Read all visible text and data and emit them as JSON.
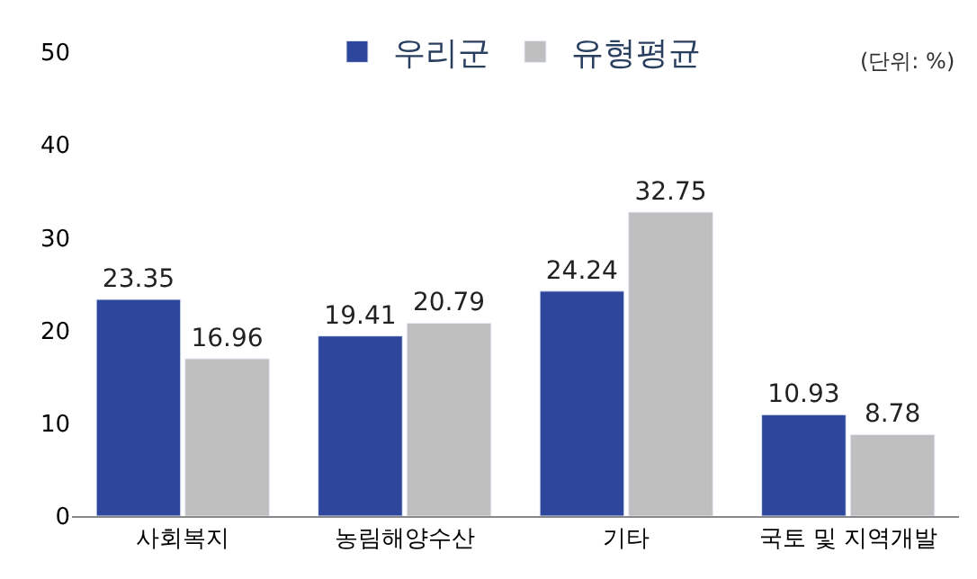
{
  "chart_data": {
    "type": "bar",
    "categories": [
      "사회복지",
      "농림해양수산",
      "기타",
      "국토 및 지역개발"
    ],
    "series": [
      {
        "name": "우리군",
        "color": "#2e479c",
        "values": [
          23.35,
          19.41,
          24.24,
          10.93
        ]
      },
      {
        "name": "유형평균",
        "color": "#bfbfbf",
        "values": [
          16.96,
          20.79,
          32.75,
          8.78
        ]
      }
    ],
    "ylim": [
      0,
      50
    ],
    "yticks": [
      0,
      10,
      20,
      30,
      40,
      50
    ],
    "legend": "top",
    "data_labels": true,
    "annotations": [
      "(단위: %)"
    ]
  }
}
